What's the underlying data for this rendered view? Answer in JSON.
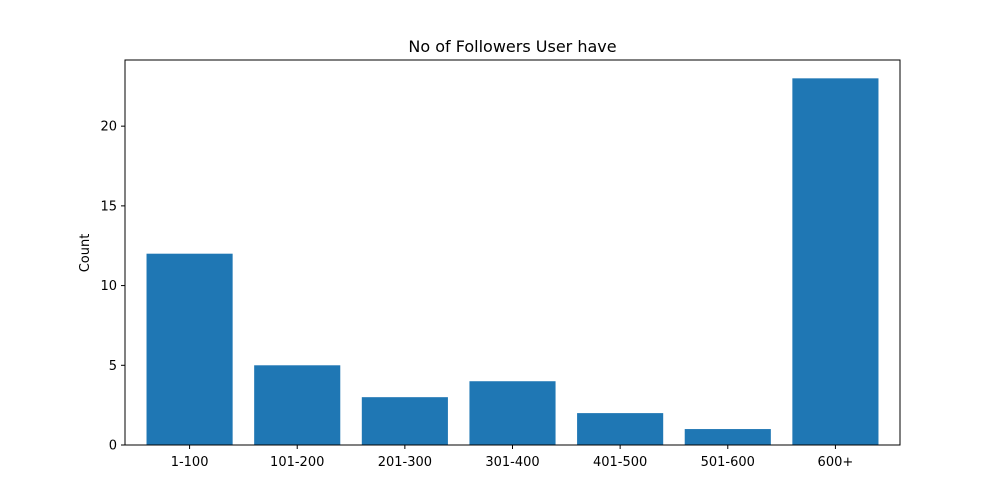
{
  "chart_data": {
    "type": "bar",
    "title": "No of Followers User have",
    "xlabel": "",
    "ylabel": "Count",
    "categories": [
      "1-100",
      "101-200",
      "201-300",
      "301-400",
      "401-500",
      "501-600",
      "600+"
    ],
    "values": [
      12,
      5,
      3,
      4,
      2,
      1,
      23
    ],
    "yticks": [
      0,
      5,
      10,
      15,
      20
    ],
    "ylim": [
      0,
      24.15
    ],
    "grid": false,
    "bar_color": "#1f77b4"
  }
}
